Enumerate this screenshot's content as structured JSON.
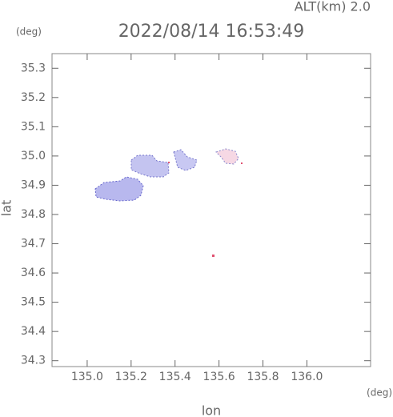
{
  "chart_data": {
    "type": "map",
    "title": "2022/08/14 16:53:49",
    "altitude_label": "ALT(km)  2.0",
    "y_unit": "(deg)",
    "x_unit": "(deg)",
    "xlabel": "lon",
    "ylabel": "lat",
    "xlim": [
      134.84,
      136.29
    ],
    "ylim": [
      34.28,
      35.35
    ],
    "xticks": [
      {
        "value": 135,
        "label": "135.0"
      },
      135.2,
      135.4,
      135.6,
      135.8,
      {
        "value": 136,
        "label": "136.0"
      }
    ],
    "yticks": [
      35.3,
      35.2,
      35.1,
      {
        "value": 35,
        "label": "35.0"
      },
      34.9,
      34.8,
      34.7,
      34.6,
      34.5,
      34.4,
      34.3
    ]
  }
}
